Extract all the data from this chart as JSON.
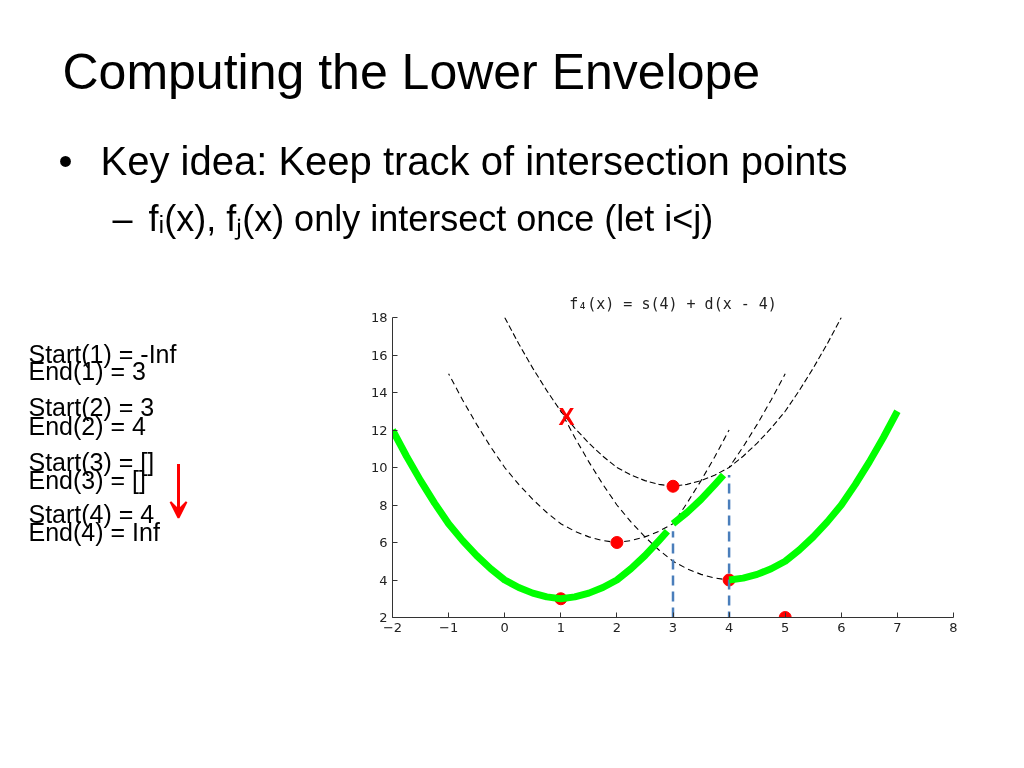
{
  "chart_data": {
    "type": "line",
    "title": "Computing the Lower Envelope",
    "annotations": [
      "•",
      "Key idea: Keep track of intersection points",
      "–",
      "fᵢ(x), fⱼ(x) only intersect once (let i<j)",
      "f₄(x) = s(4) + d(x - 4)",
      "Start(1) = -Inf",
      "End(1) = 3",
      "Start(2) = 3",
      "End(2) = 4",
      "Start(3) = []",
      "End(3) = []",
      "Start(4) = 4",
      "End(4) = Inf",
      {
        "text": "X",
        "x": 1.1,
        "y": 12.7
      }
    ],
    "xlim": [
      -2,
      8
    ],
    "ylim": [
      2,
      18
    ],
    "xticks": [
      -2,
      -1,
      0,
      1,
      2,
      3,
      4,
      5,
      6,
      7,
      8
    ],
    "yticks": [
      2,
      4,
      6,
      8,
      10,
      12,
      14,
      16,
      18
    ],
    "series": [
      {
        "color": "#000000",
        "line_style": "dashed",
        "x": [
          3,
          3.25,
          3.5,
          3.75,
          4
        ],
        "values": [
          7,
          8.1,
          9.3,
          10.6,
          12
        ]
      },
      {
        "color": "#000000",
        "line_style": "dashed",
        "x": [
          -1,
          -0.75,
          -0.5,
          -0.25,
          0,
          0.25,
          0.5,
          0.75,
          1,
          1.25,
          1.5,
          1.75,
          2,
          2.25,
          2.5,
          2.75,
          3,
          3.25,
          3.5,
          3.75,
          4,
          4.25,
          4.5,
          4.75,
          5
        ],
        "values": [
          15,
          13.6,
          12.3,
          11.1,
          10,
          9.1,
          8.3,
          7.6,
          7,
          6.6,
          6.3,
          6.1,
          6,
          6.1,
          6.3,
          6.6,
          7,
          null,
          null,
          null,
          10,
          11.1,
          12.3,
          13.6,
          15
        ]
      },
      {
        "color": "#000000",
        "line_style": "dashed",
        "x": [
          0,
          0.25,
          0.5,
          0.75,
          1,
          1.25,
          1.5,
          1.75,
          2,
          2.25,
          2.5,
          2.75,
          3,
          3.25,
          3.5,
          3.75,
          4,
          4.25,
          4.5,
          4.75,
          5,
          5.25,
          5.5,
          5.75,
          6
        ],
        "values": [
          18,
          16.6,
          15.3,
          14.1,
          13,
          12.1,
          11.3,
          10.6,
          10,
          9.6,
          9.3,
          9.1,
          9,
          9.1,
          9.3,
          9.6,
          10,
          10.6,
          11.3,
          12.1,
          13,
          14.1,
          15.3,
          16.6,
          18
        ]
      },
      {
        "color": "#000000",
        "line_style": "dashed",
        "x": [
          1,
          1.25,
          1.5,
          1.75,
          2,
          2.25,
          2.5,
          2.75,
          3,
          3.25,
          3.5,
          3.75,
          4
        ],
        "values": [
          13,
          11.6,
          10.3,
          9.1,
          8,
          7.1,
          6.3,
          5.6,
          5,
          4.6,
          4.3,
          4.1,
          4
        ]
      },
      {
        "type": "scatter",
        "color": "#ff0000",
        "marker": "circle",
        "x": [
          1,
          2,
          3,
          4,
          5
        ],
        "values": [
          3,
          6,
          9,
          4,
          2
        ]
      },
      {
        "color": "#4a7ebb",
        "line_style": "dashed",
        "x": [
          3,
          3
        ],
        "values": [
          2,
          6.6
        ]
      },
      {
        "color": "#4a7ebb",
        "line_style": "dashed",
        "x": [
          4,
          4
        ],
        "values": [
          2,
          9.6
        ]
      },
      {
        "color": "#00ff00",
        "line_style": "solid",
        "x": [
          -2,
          -1.75,
          -1.5,
          -1.25,
          -1,
          -0.75,
          -0.5,
          -0.25,
          0,
          0.25,
          0.5,
          0.75,
          1,
          1.25,
          1.5,
          1.75,
          2,
          2.25,
          2.5,
          2.75,
          2.9
        ],
        "values": [
          12,
          10.6,
          9.3,
          8.1,
          7,
          6.1,
          5.3,
          4.6,
          4,
          3.6,
          3.3,
          3.1,
          3,
          3.1,
          3.3,
          3.6,
          4,
          4.6,
          5.3,
          6.1,
          6.6
        ]
      },
      {
        "color": "#00ff00",
        "line_style": "solid",
        "x": [
          3,
          3.25,
          3.5,
          3.75,
          3.9
        ],
        "values": [
          7,
          7.6,
          8.3,
          9.1,
          9.6
        ]
      },
      {
        "color": "#00ff00",
        "line_style": "solid",
        "x": [
          4,
          4.25,
          4.5,
          4.75,
          5,
          5.25,
          5.5,
          5.75,
          6,
          6.25,
          6.5,
          6.75,
          7
        ],
        "values": [
          4,
          4.1,
          4.3,
          4.6,
          5,
          5.6,
          6.3,
          7.1,
          8,
          9.1,
          10.3,
          11.6,
          13
        ]
      }
    ]
  }
}
